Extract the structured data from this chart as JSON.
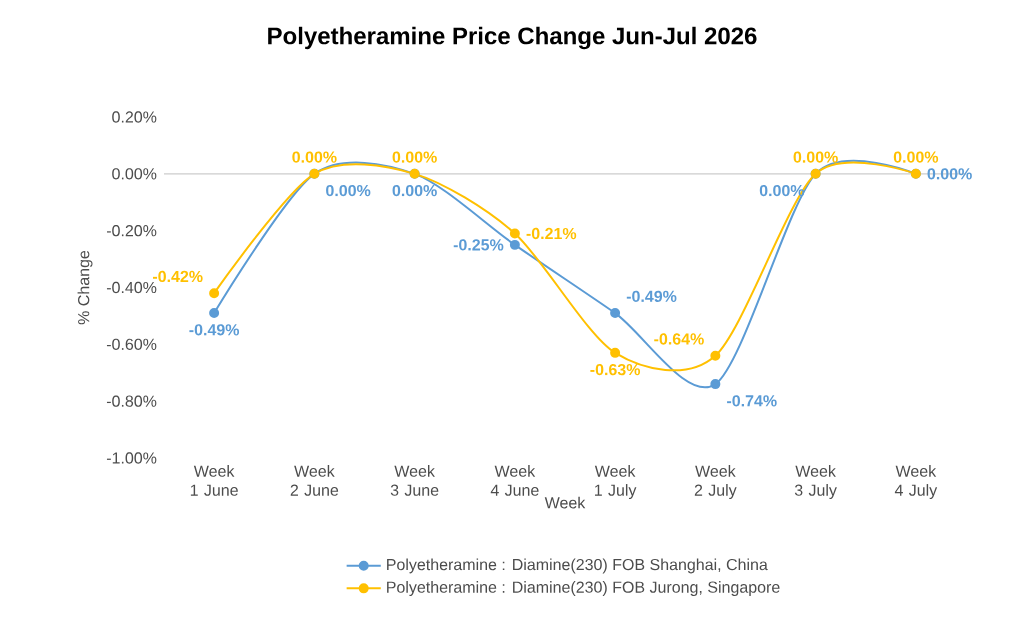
{
  "chart_data": {
    "type": "line",
    "title": "Polyetheramine Price Change Jun-Jul 2026",
    "xlabel": "Week",
    "ylabel": "% Change",
    "categories": [
      "Week 1 June",
      "Week 2 June",
      "Week 3 June",
      "Week 4 June",
      "Week 1 July",
      "Week 2 July",
      "Week 3 July",
      "Week 4 July"
    ],
    "series": [
      {
        "name": "Polyetheramine : Diamine(230) FOB Shanghai, China",
        "color": "#5b9bd5",
        "values": [
          -0.49,
          0,
          0,
          -0.25,
          -0.49,
          -0.74,
          0,
          0
        ],
        "value_labels": [
          "-0.49%",
          "0.00%",
          "0.00%",
          "-0.25%",
          "-0.49%",
          "-0.74%",
          "0.00%",
          "0.00%"
        ]
      },
      {
        "name": "Polyetheramine : Diamine(230) FOB Jurong, Singapore",
        "color": "#ffc000",
        "values": [
          -0.42,
          0,
          0,
          -0.21,
          -0.63,
          -0.64,
          0,
          0
        ],
        "value_labels": [
          "-0.42%",
          "0.00%",
          "0.00%",
          "-0.21%",
          "-0.63%",
          "-0.64%",
          "0.00%",
          "0.00%"
        ]
      }
    ],
    "ylim": [
      -1,
      0.2
    ],
    "yticks": [
      {
        "value": -1,
        "label": "-1.00%"
      },
      {
        "value": -0.8,
        "label": "-0.80%"
      },
      {
        "value": -0.6,
        "label": "-0.60%"
      },
      {
        "value": -0.4,
        "label": "-0.40%"
      },
      {
        "value": -0.2,
        "label": "-0.20%"
      },
      {
        "value": 0,
        "label": "0.00%"
      },
      {
        "value": 0.2,
        "label": "0.20%"
      }
    ],
    "legend": "bottom",
    "marker": "circle",
    "line_style": "solid"
  }
}
